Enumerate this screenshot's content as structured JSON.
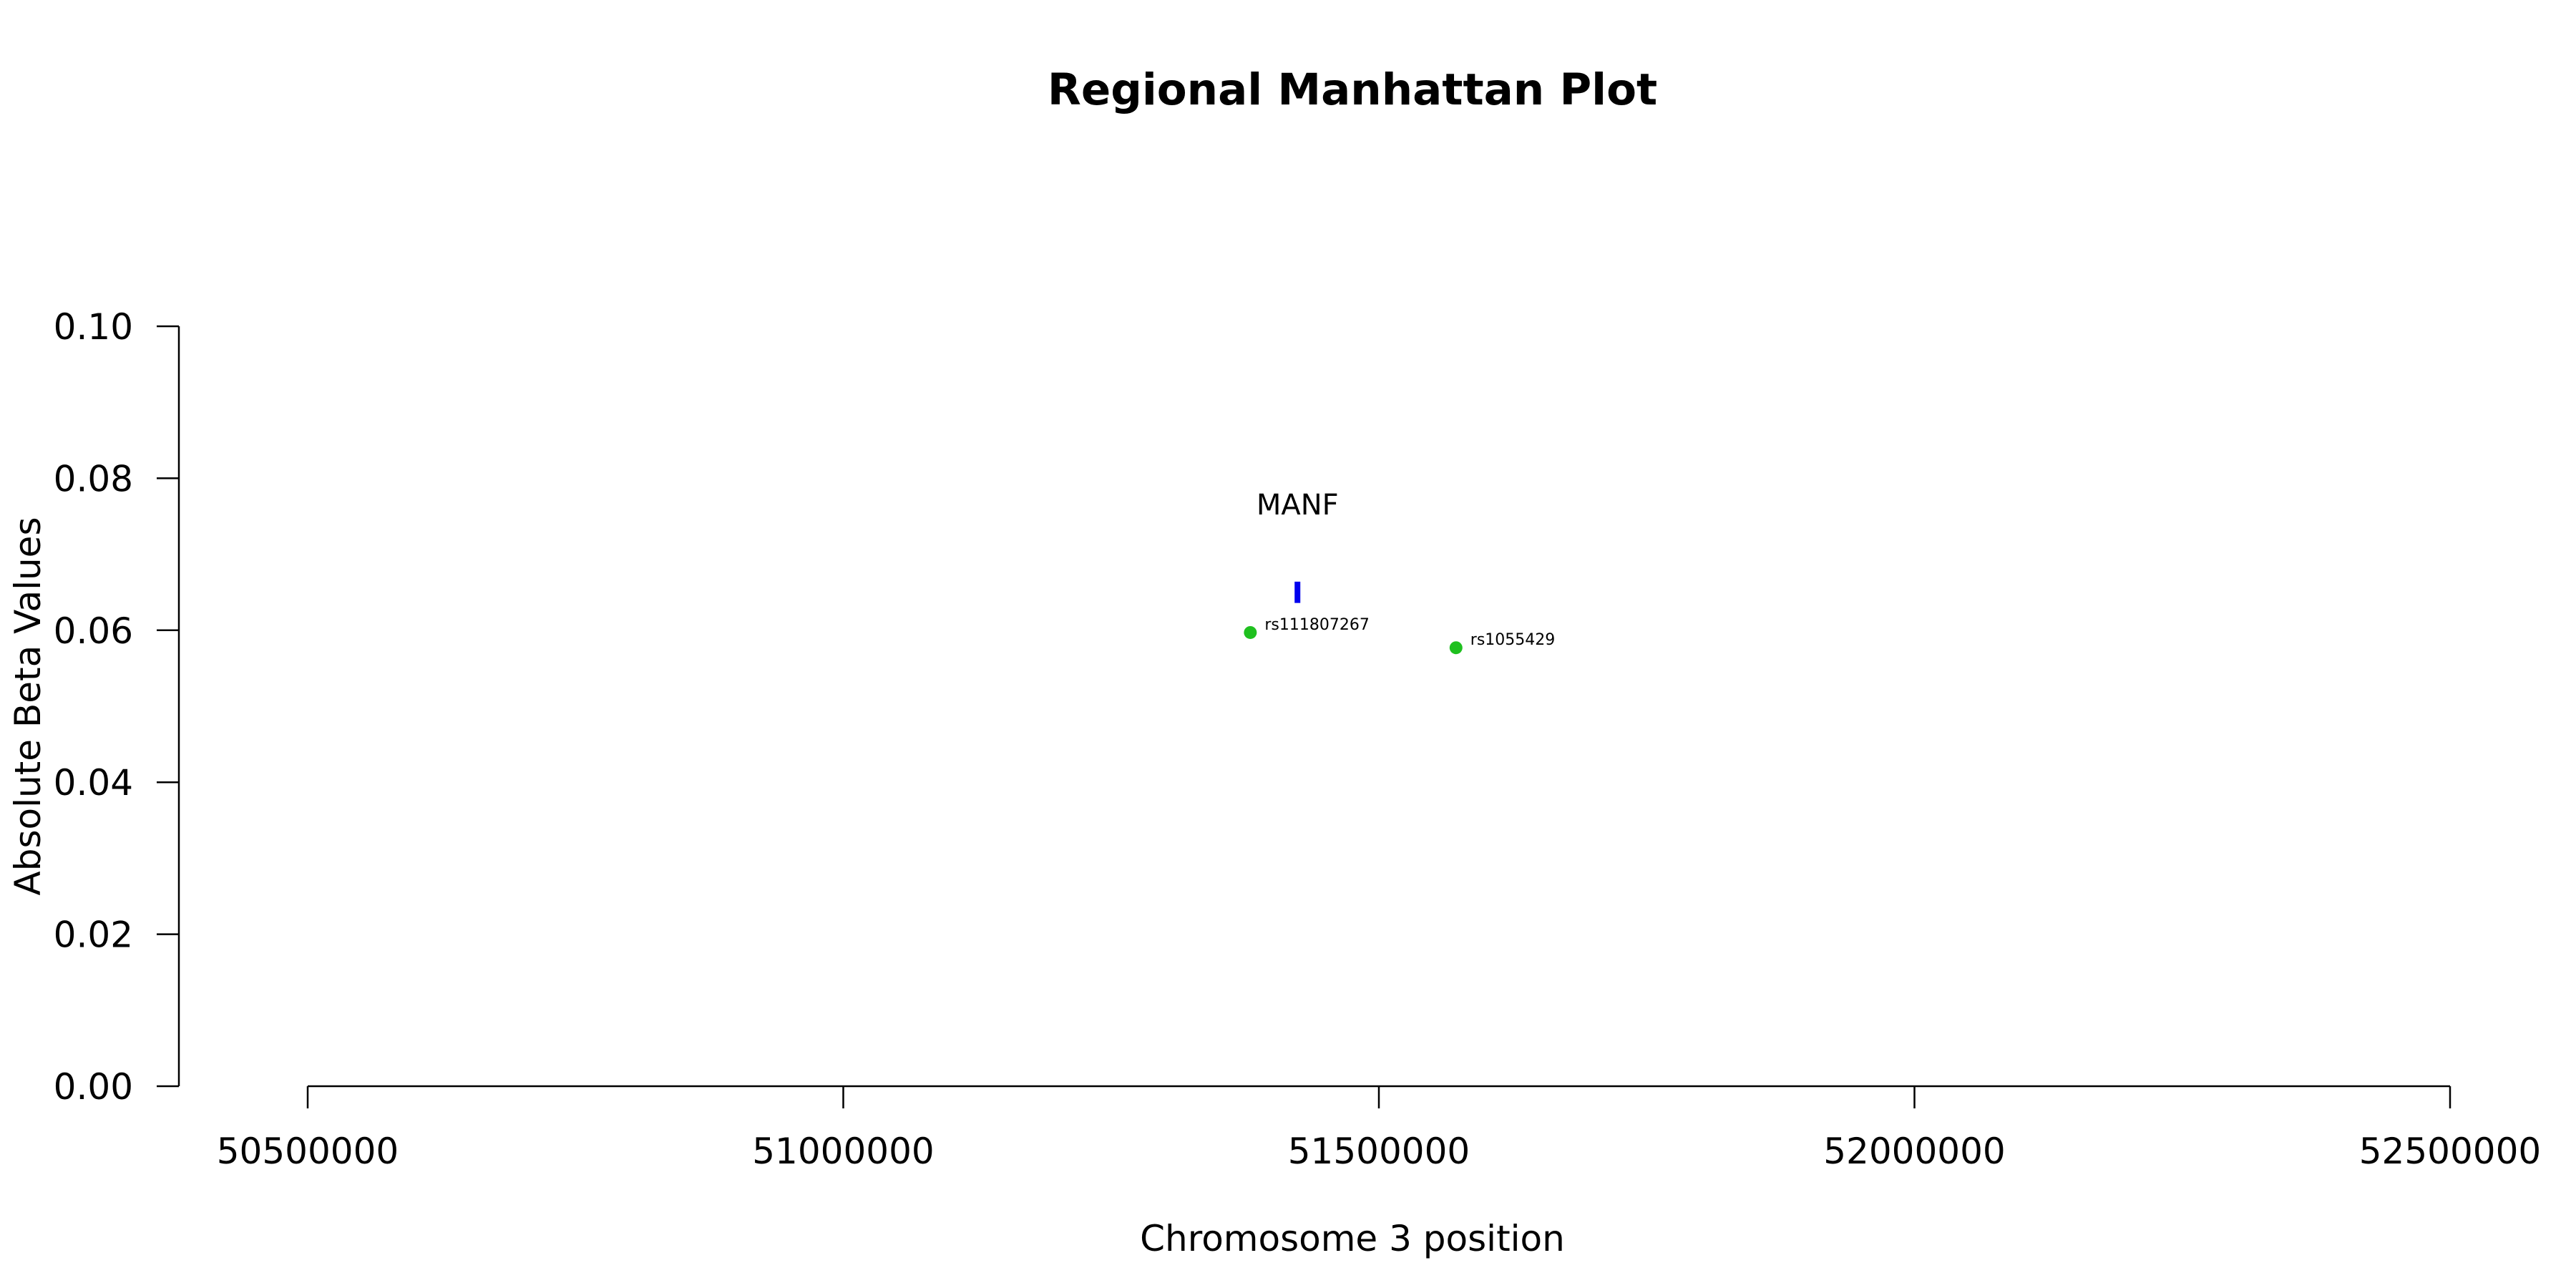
{
  "chart_data": {
    "type": "scatter",
    "title": "Regional Manhattan Plot",
    "xlabel": "Chromosome 3 position",
    "ylabel": "Absolute Beta Values",
    "xlim": [
      50500000,
      52500000
    ],
    "ylim": [
      0,
      0.1
    ],
    "x_ticks": [
      50500000,
      51000000,
      51500000,
      52000000,
      52500000
    ],
    "x_tick_labels": [
      "50500000",
      "51000000",
      "51500000",
      "52000000",
      "52500000"
    ],
    "y_ticks": [
      0,
      0.02,
      0.04,
      0.06,
      0.08,
      0.1
    ],
    "y_tick_labels": [
      "0.00",
      "0.02",
      "0.04",
      "0.06",
      "0.08",
      "0.10"
    ],
    "grid": false,
    "points": [
      {
        "label": "rs111807267",
        "x": 51380000,
        "y": 0.0597,
        "color": "#1fc01f"
      },
      {
        "label": "rs1055429",
        "x": 51572000,
        "y": 0.0577,
        "color": "#1fc01f"
      }
    ],
    "genes": [
      {
        "label": "MANF",
        "x": 51424000,
        "y_min": 0.0636,
        "y_max": 0.0664,
        "color": "#0000ee"
      }
    ]
  }
}
